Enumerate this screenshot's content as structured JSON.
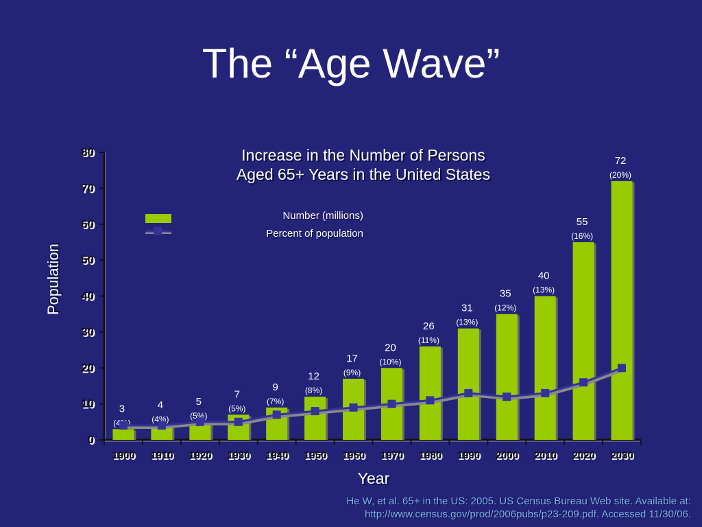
{
  "slide_title": "The “Age Wave”",
  "citation": {
    "line1": "He W, et al. 65+ in the US: 2005. US Census Bureau Web site. Available at:",
    "line2": "http://www.census.gov/prod/2006pubs/p23-209.pdf. Accessed 11/30/06."
  },
  "colors": {
    "background": "#232477",
    "bar": "#99cc00",
    "line": "#333399",
    "axis": "#111111"
  },
  "chart_data": {
    "type": "bar",
    "title_line1": "Increase in the Number of Persons",
    "title_line2": "Aged 65+ Years in the United States",
    "xlabel": "Year",
    "ylabel": "Population",
    "ylim": [
      0,
      80
    ],
    "yticks": [
      "0",
      "10",
      "20",
      "30",
      "40",
      "50",
      "60",
      "70",
      "80"
    ],
    "categories": [
      "1900",
      "1910",
      "1920",
      "1930",
      "1940",
      "1950",
      "1960",
      "1970",
      "1980",
      "1990",
      "2000",
      "2010",
      "2020",
      "2030"
    ],
    "series": [
      {
        "name": "Number (millions)",
        "type": "bar",
        "values": [
          3,
          4,
          5,
          7,
          9,
          12,
          17,
          20,
          26,
          31,
          35,
          40,
          55,
          72
        ],
        "labels": [
          "3",
          "4",
          "5",
          "7",
          "9",
          "12",
          "17",
          "20",
          "26",
          "31",
          "35",
          "40",
          "55",
          "72"
        ]
      },
      {
        "name": "Percent of population",
        "type": "line",
        "values": [
          4,
          4,
          5,
          5,
          7,
          8,
          9,
          10,
          11,
          13,
          12,
          13,
          16,
          20
        ],
        "labels": [
          "(4%)",
          "(4%)",
          "(5%)",
          "(5%)",
          "(7%)",
          "(8%)",
          "(9%)",
          "(10%)",
          "(11%)",
          "(13%)",
          "(12%)",
          "(13%)",
          "(16%)",
          "(20%)"
        ]
      }
    ],
    "legend_placement": "top-left",
    "grid": false
  }
}
